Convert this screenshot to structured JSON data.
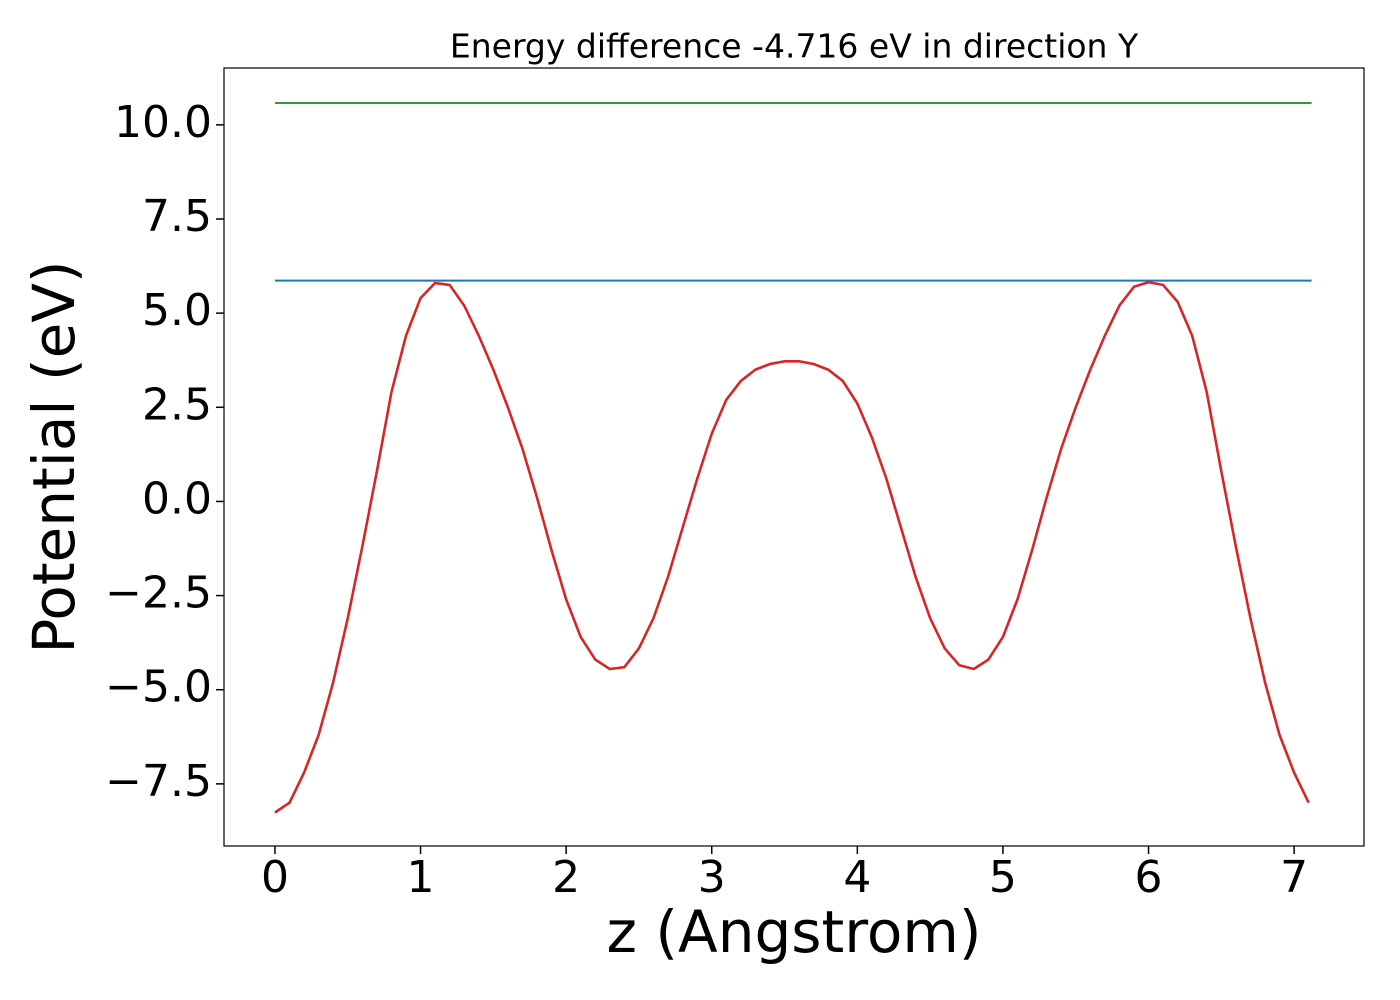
{
  "chart_data": {
    "type": "line",
    "title": "Energy difference -4.716 eV in direction Y",
    "xlabel": "z (Angstrom)",
    "ylabel": "Potential (eV)",
    "xlim": [
      -0.35,
      7.48
    ],
    "ylim": [
      -9.15,
      11.51
    ],
    "xticks": [
      0,
      1,
      2,
      3,
      4,
      5,
      6,
      7
    ],
    "yticks": [
      {
        "value": -7.5,
        "label": "−7.5"
      },
      {
        "value": -5,
        "label": "−5.0"
      },
      {
        "value": -2.5,
        "label": "−2.5"
      },
      {
        "value": 0,
        "label": "0.0"
      },
      2.5,
      {
        "value": 5,
        "label": "5.0"
      },
      7.5,
      {
        "value": 10,
        "label": "10.0"
      }
    ],
    "series": [
      {
        "color": "#2ca02c",
        "x": [
          0,
          7.12
        ],
        "values": [
          10.58,
          10.58
        ]
      },
      {
        "color": "#1f77b4",
        "x": [
          0,
          7.12
        ],
        "values": [
          5.864,
          5.864
        ]
      },
      {
        "color": "#d62728",
        "x": [
          0,
          0.1,
          0.2,
          0.3,
          0.4,
          0.5,
          0.6,
          0.7,
          0.8,
          0.9,
          1.0,
          1.1,
          1.2,
          1.3,
          1.4,
          1.5,
          1.6,
          1.7,
          1.8,
          1.9,
          2.0,
          2.1,
          2.2,
          2.3,
          2.4,
          2.5,
          2.6,
          2.7,
          2.8,
          2.9,
          3.0,
          3.1,
          3.2,
          3.3,
          3.4,
          3.5,
          3.6,
          3.7,
          3.8,
          3.9,
          4.0,
          4.1,
          4.2,
          4.3,
          4.4,
          4.5,
          4.6,
          4.7,
          4.8,
          4.9,
          5.0,
          5.1,
          5.2,
          5.3,
          5.4,
          5.5,
          5.6,
          5.7,
          5.8,
          5.9,
          6.0,
          6.1,
          6.2,
          6.3,
          6.4,
          6.5,
          6.6,
          6.7,
          6.8,
          6.9,
          7.0,
          7.1
        ],
        "values": [
          -8.26,
          -8.0,
          -7.2,
          -6.2,
          -4.8,
          -3.1,
          -1.2,
          0.8,
          2.9,
          4.4,
          5.4,
          5.8,
          5.75,
          5.2,
          4.4,
          3.5,
          2.5,
          1.4,
          0.1,
          -1.3,
          -2.6,
          -3.6,
          -4.2,
          -4.45,
          -4.4,
          -3.9,
          -3.1,
          -2.0,
          -0.7,
          0.6,
          1.8,
          2.7,
          3.2,
          3.5,
          3.65,
          3.72,
          3.72,
          3.65,
          3.5,
          3.2,
          2.6,
          1.7,
          0.6,
          -0.7,
          -2.0,
          -3.1,
          -3.9,
          -4.35,
          -4.45,
          -4.2,
          -3.6,
          -2.6,
          -1.3,
          0.1,
          1.4,
          2.5,
          3.5,
          4.4,
          5.2,
          5.7,
          5.82,
          5.75,
          5.3,
          4.4,
          2.9,
          0.8,
          -1.2,
          -3.1,
          -4.8,
          -6.2,
          -7.2,
          -8.0
        ]
      }
    ]
  }
}
